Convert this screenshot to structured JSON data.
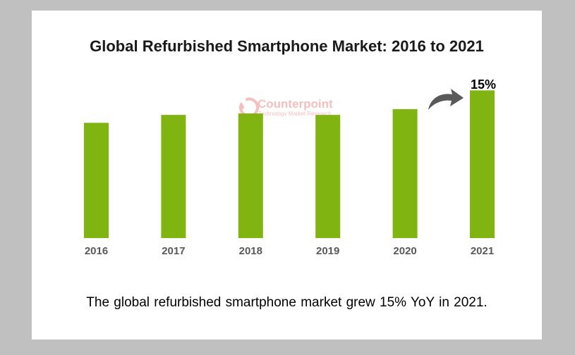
{
  "chart_data": {
    "type": "bar",
    "title": "Global Refurbished Smartphone Market: 2016 to 2021",
    "categories": [
      "2016",
      "2017",
      "2018",
      "2019",
      "2020",
      "2021"
    ],
    "values": [
      80,
      85.5,
      86.5,
      85.5,
      89.5,
      102.5
    ],
    "ylim": [
      0,
      110
    ],
    "xlabel": "",
    "ylabel": "",
    "grid": false,
    "annotation": {
      "label": "15%",
      "category": "2021"
    },
    "bar_color": "#7fb411"
  },
  "watermark": {
    "name": "Counterpoint",
    "subtitle": "Technology Market Research",
    "color": "#f08a8a"
  },
  "caption": "The global refurbished smartphone market grew 15% YoY in 2021."
}
